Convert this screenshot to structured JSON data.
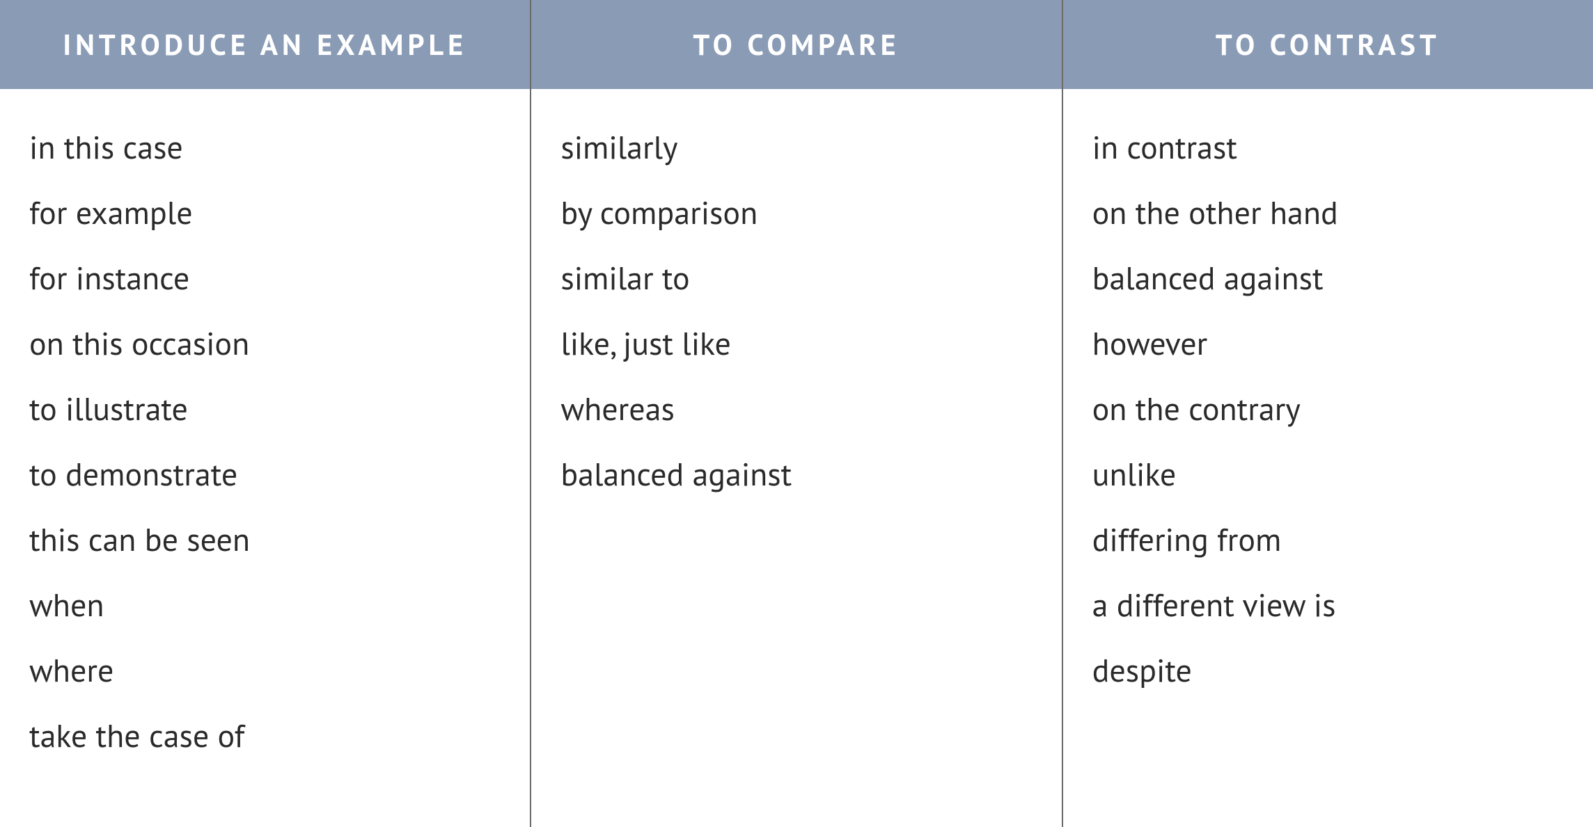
{
  "table": {
    "header_bg": "#8a9bb5",
    "header_fg": "#ffffff",
    "header_fontsize": 42,
    "header_letter_spacing": 6,
    "body_bg": "#ffffff",
    "body_fg": "#2a2a2a",
    "body_fontsize": 46,
    "divider_color": "#6b6b6b",
    "columns": [
      {
        "header": "INTRODUCE AN EXAMPLE",
        "items": [
          "in this case",
          "for example",
          "for instance",
          "on this occasion",
          "to illustrate",
          "to demonstrate",
          "this can be seen",
          "when",
          "where",
          "take the case of"
        ]
      },
      {
        "header": "TO COMPARE",
        "items": [
          "similarly",
          "by comparison",
          "similar to",
          "like, just like",
          "whereas",
          "balanced against"
        ]
      },
      {
        "header": "TO CONTRAST",
        "items": [
          "in contrast",
          "on the other hand",
          "balanced against",
          "however",
          "on the contrary",
          "unlike",
          "differing from",
          "a different view is",
          "despite"
        ]
      }
    ]
  }
}
